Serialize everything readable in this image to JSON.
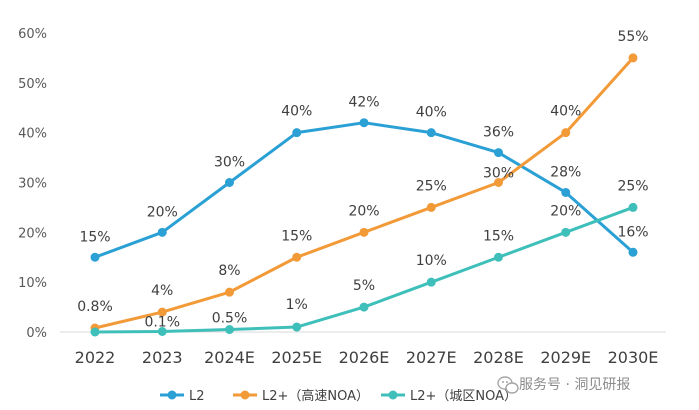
{
  "chart_data": {
    "type": "line",
    "categories": [
      "2022",
      "2023",
      "2024E",
      "2025E",
      "2026E",
      "2027E",
      "2028E",
      "2029E",
      "2030E"
    ],
    "ylim": [
      0,
      60
    ],
    "yticks": [
      "0%",
      "10%",
      "20%",
      "30%",
      "40%",
      "50%",
      "60%"
    ],
    "grid": false,
    "legend_position": "bottom",
    "series": [
      {
        "name": "L2",
        "color": "#2aa0d4",
        "values": [
          15,
          20,
          30,
          40,
          42,
          40,
          36,
          28,
          16
        ],
        "labels": [
          "15%",
          "20%",
          "30%",
          "40%",
          "42%",
          "40%",
          "36%",
          "28%",
          "16%"
        ]
      },
      {
        "name": "L2+（高速NOA）",
        "color": "#f29a38",
        "values": [
          0.8,
          4,
          8,
          15,
          20,
          25,
          30,
          40,
          55
        ],
        "labels": [
          "0.8%",
          "4%",
          "8%",
          "15%",
          "20%",
          "25%",
          "30%",
          "40%",
          "55%"
        ]
      },
      {
        "name": "L2+（城区NOA）",
        "color": "#3fbfba",
        "values": [
          0,
          0.1,
          0.5,
          1,
          5,
          10,
          15,
          20,
          25
        ],
        "labels": [
          "",
          "0.1%",
          "0.5%",
          "1%",
          "5%",
          "10%",
          "15%",
          "20%",
          "25%"
        ]
      }
    ]
  },
  "watermark": {
    "text": "服务号 · 洞见研报",
    "icon": "wechat-icon"
  }
}
